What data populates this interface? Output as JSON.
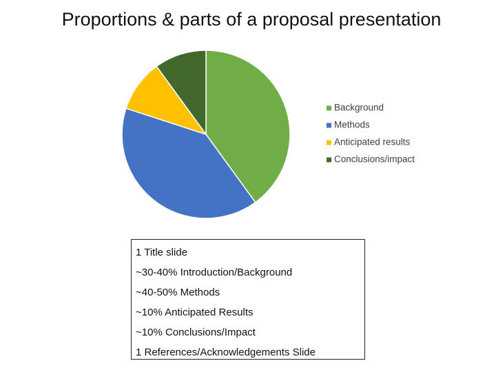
{
  "chart_data": {
    "type": "pie",
    "title": "Proportions & parts of a proposal presentation",
    "categories": [
      "Background",
      "Methods",
      "Anticipated results",
      "Conclusions/impact"
    ],
    "values": [
      40,
      40,
      10,
      10
    ],
    "colors": [
      "#70ad47",
      "#4472c4",
      "#ffc000",
      "#43682b"
    ],
    "legend": "right"
  },
  "text_box": {
    "lines": [
      "1 Title slide",
      "~30-40% Introduction/Background",
      "~40-50% Methods",
      "~10% Anticipated Results",
      "~10% Conclusions/Impact",
      "1 References/Acknowledgements Slide"
    ]
  }
}
